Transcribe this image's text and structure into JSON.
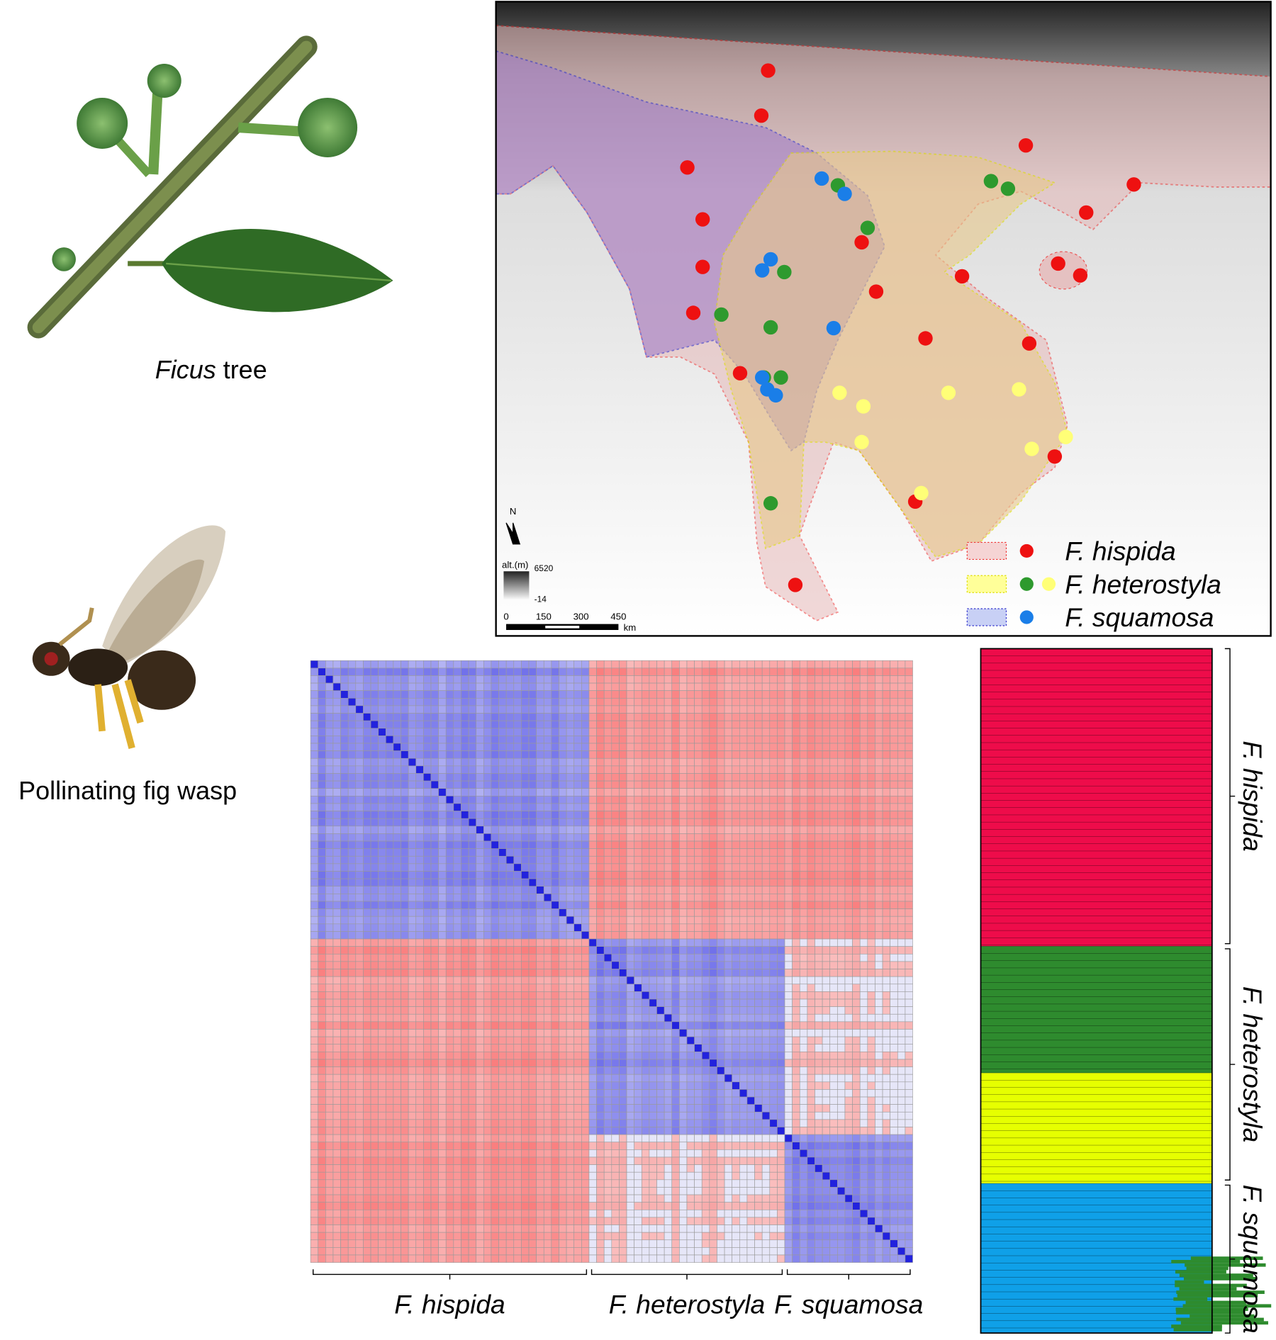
{
  "figure": {
    "ficus_caption": {
      "italic": "Ficus",
      "rest": " tree"
    },
    "wasp_caption": "Pollinating fig wasp",
    "map": {
      "north": "N",
      "altitude_label": "alt.(m)",
      "altitude_max": 6520,
      "altitude_min": -14,
      "scale_ticks": [
        0,
        150,
        300,
        450
      ],
      "scale_unit": "km",
      "legend": [
        "F. hispida",
        "F. heterostyla",
        "F. squamosa"
      ]
    },
    "heatmap": {
      "group_labels": [
        "F. hispida",
        "F. heterostyla",
        "F. squamosa"
      ]
    },
    "structure": {
      "group_labels": [
        "F. hispida",
        "F. heterostyla",
        "F. squamosa"
      ]
    }
  }
}
